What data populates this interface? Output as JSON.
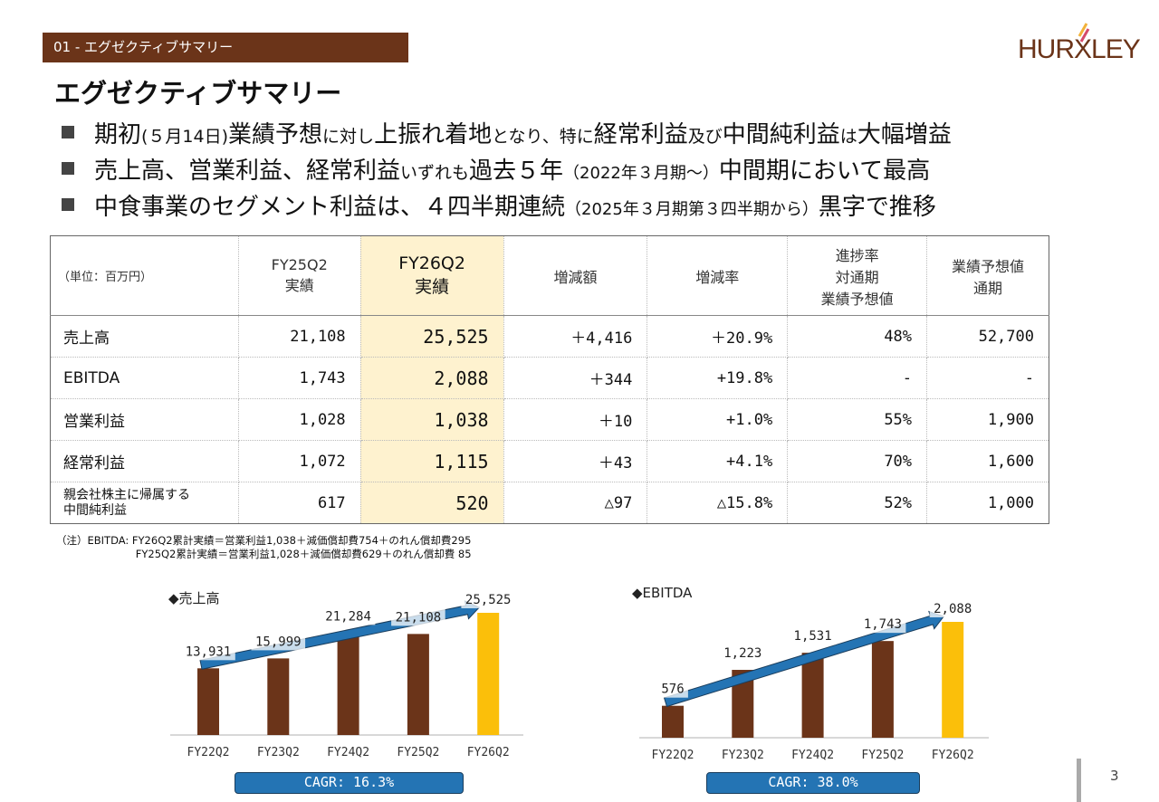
{
  "section_label": "01 - エグゼクティブサマリー",
  "logo": "HURXLEY",
  "title": "エグゼクティブサマリー",
  "bullets": [
    {
      "parts": [
        "期初",
        "(５月14日)",
        "業績予想",
        "に対し",
        "上振れ着地",
        "となり、特に",
        "経常利益",
        "及び",
        "中間純利益",
        "は",
        "大幅増益"
      ]
    },
    {
      "parts": [
        "売上高、営業利益、経常利益",
        "いずれも",
        "過去５年",
        "（2022年３月期～）",
        "中間期において最高"
      ]
    },
    {
      "parts": [
        "中食事業のセグメント利益は、４四半期連続",
        "（2025年３月期第３四半期から）",
        "黒字で推移"
      ]
    }
  ],
  "table": {
    "headers": [
      "（単位：百万円）",
      "FY25Q2\n実績",
      "FY26Q2\n実績",
      "増減額",
      "増減率",
      "進捗率\n対通期\n業績予想値",
      "業績予想値\n通期"
    ],
    "rows": [
      [
        "売上高",
        "21,108",
        "25,525",
        "＋4,416",
        "＋20.9%",
        "48%",
        "52,700"
      ],
      [
        "EBITDA",
        "1,743",
        "2,088",
        "＋344",
        "+19.8%",
        "-",
        "-"
      ],
      [
        "営業利益",
        "1,028",
        "1,038",
        "＋10",
        "+1.0%",
        "55%",
        "1,900"
      ],
      [
        "経常利益",
        "1,072",
        "1,115",
        "＋43",
        "+4.1%",
        "70%",
        "1,600"
      ],
      [
        "親会社株主に帰属する\n中間純利益",
        "617",
        "520",
        "△97",
        "△15.8%",
        "52%",
        "1,000"
      ]
    ]
  },
  "note": "（注）EBITDA: FY26Q2累計実績＝営業利益1,038＋減価償却費754＋のれん償却費295\n                        FY25Q2累計実績＝営業利益1,028＋減価償却費629＋のれん償却費 85",
  "colors": {
    "brown": "#6b3419",
    "highlight": "#fbbf0a",
    "arrow": "#2474b4"
  },
  "chart_data": [
    {
      "type": "bar",
      "title": "◆売上高",
      "categories": [
        "FY22Q2",
        "FY23Q2",
        "FY24Q2",
        "FY25Q2",
        "FY26Q2"
      ],
      "values": [
        13931,
        15999,
        21284,
        21108,
        25525
      ],
      "labels": [
        "13,931",
        "15,999",
        "21,284",
        "21,108",
        "25,525"
      ],
      "annotation": "CAGR: 16.3%"
    },
    {
      "type": "bar",
      "title": "◆EBITDA",
      "categories": [
        "FY22Q2",
        "FY23Q2",
        "FY24Q2",
        "FY25Q2",
        "FY26Q2"
      ],
      "values": [
        576,
        1223,
        1531,
        1743,
        2088
      ],
      "labels": [
        "576",
        "1,223",
        "1,531",
        "1,743",
        "2,088"
      ],
      "annotation": "CAGR: 38.0%"
    }
  ],
  "page_number": "3"
}
